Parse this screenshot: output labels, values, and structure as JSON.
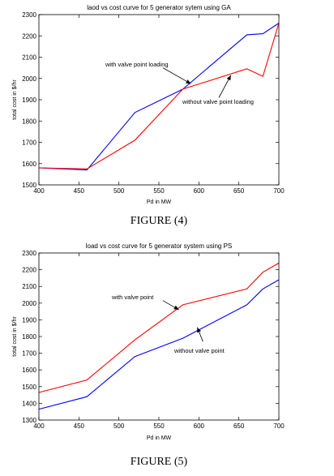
{
  "chart_data": [
    {
      "type": "line",
      "title": "laod vs cost curve for 5 generator sytem using GA",
      "xlabel": "Pd in MW",
      "ylabel": "total cost in $/hr",
      "xlim": [
        400,
        700
      ],
      "ylim": [
        1500,
        2300
      ],
      "xticks": [
        "400",
        "450",
        "500",
        "550",
        "600",
        "650",
        "700"
      ],
      "yticks": [
        "1500",
        "1600",
        "1700",
        "1800",
        "1900",
        "2000",
        "2100",
        "2200",
        "2300"
      ],
      "grid": false,
      "legend": "none",
      "series": [
        {
          "color": "#0000ff",
          "x": [
            400,
            460,
            520,
            580,
            660,
            680,
            700
          ],
          "y": [
            1580,
            1570,
            1840,
            1950,
            2205,
            2210,
            2260
          ]
        },
        {
          "color": "#ff0000",
          "x": [
            400,
            460,
            520,
            580,
            660,
            680,
            700
          ],
          "y": [
            1580,
            1575,
            1710,
            1950,
            2045,
            2010,
            2260
          ]
        }
      ],
      "annotations": [
        {
          "text": "with valve point loading",
          "arrow_from": [
            555,
            2050
          ],
          "arrow_to": [
            590,
            1975
          ]
        },
        {
          "text": "without valve point loading",
          "arrow_from": [
            625,
            1910
          ],
          "arrow_to": [
            640,
            2015
          ]
        }
      ],
      "caption": "FIGURE (4)"
    },
    {
      "type": "line",
      "title": "load vs cost curve for 5 generator system using PS",
      "xlabel": "Pd in MW",
      "ylabel": "total cost in $/hr",
      "xlim": [
        400,
        700
      ],
      "ylim": [
        1300,
        2300
      ],
      "xticks": [
        "400",
        "450",
        "500",
        "550",
        "600",
        "650",
        "700"
      ],
      "yticks": [
        "1300",
        "1400",
        "1500",
        "1600",
        "1700",
        "1800",
        "1900",
        "2000",
        "2100",
        "2200",
        "2300"
      ],
      "grid": false,
      "legend": "none",
      "series": [
        {
          "color": "#ff0000",
          "x": [
            400,
            460,
            520,
            580,
            660,
            680,
            700
          ],
          "y": [
            1465,
            1540,
            1780,
            1990,
            2085,
            2185,
            2240
          ]
        },
        {
          "color": "#0000ff",
          "x": [
            400,
            460,
            520,
            580,
            660,
            680,
            700
          ],
          "y": [
            1365,
            1440,
            1680,
            1790,
            1990,
            2085,
            2140
          ]
        }
      ],
      "annotations": [
        {
          "text": "with valve point",
          "arrow_from": [
            555,
            2015
          ],
          "arrow_to": [
            575,
            1960
          ]
        },
        {
          "text": "without valve point",
          "arrow_from": [
            605,
            1770
          ],
          "arrow_to": [
            598,
            1855
          ]
        }
      ],
      "caption": "FIGURE (5)"
    }
  ]
}
